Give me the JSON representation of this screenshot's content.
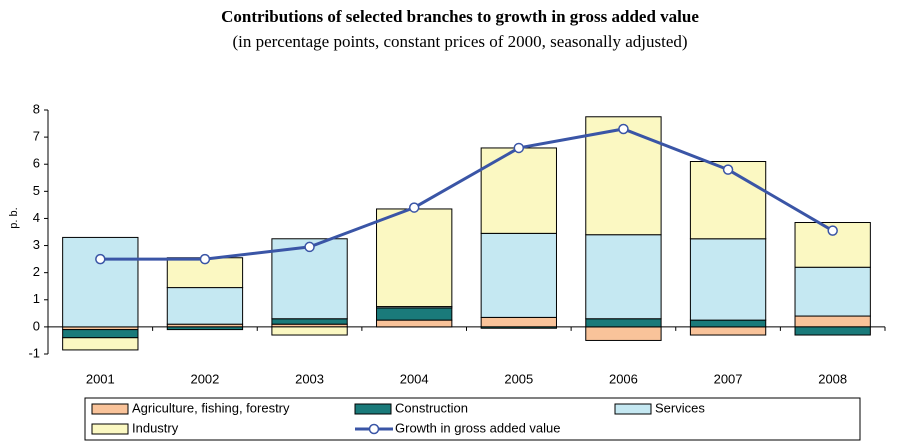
{
  "chart_data": {
    "type": "bar",
    "title": "Contributions of selected branches to growth in gross added value",
    "subtitle": "(in percentage points, constant prices of 2000, seasonally adjusted)",
    "y_label": "p. b.",
    "categories": [
      "2001",
      "2002",
      "2003",
      "2004",
      "2005",
      "2006",
      "2007",
      "2008"
    ],
    "stacked": true,
    "series": [
      {
        "name": "Agriculture, fishing, forestry",
        "color": "#f9c39a",
        "values": [
          -0.1,
          0.1,
          0.1,
          0.25,
          0.35,
          -0.5,
          -0.3,
          0.4
        ]
      },
      {
        "name": "Construction",
        "color": "#1a7a7a",
        "values": [
          -0.3,
          -0.1,
          0.2,
          0.45,
          -0.05,
          0.3,
          0.25,
          -0.3
        ]
      },
      {
        "name": "Services",
        "color": "#c5e8f2",
        "values": [
          3.3,
          1.35,
          2.95,
          0.05,
          3.1,
          3.1,
          3.0,
          1.8
        ]
      },
      {
        "name": "Industry",
        "color": "#fbf8c2",
        "values": [
          -0.45,
          1.1,
          -0.3,
          3.6,
          3.15,
          4.35,
          2.85,
          1.65
        ]
      },
      {
        "name": "Growth in gross added value",
        "color": "#3a55a6",
        "type": "line",
        "values": [
          2.5,
          2.5,
          2.95,
          4.4,
          6.6,
          7.3,
          5.8,
          3.55
        ]
      }
    ],
    "ylim": [
      -1,
      8
    ],
    "yticks": [
      -1,
      0,
      1,
      2,
      3,
      4,
      5,
      6,
      7,
      8
    ]
  }
}
